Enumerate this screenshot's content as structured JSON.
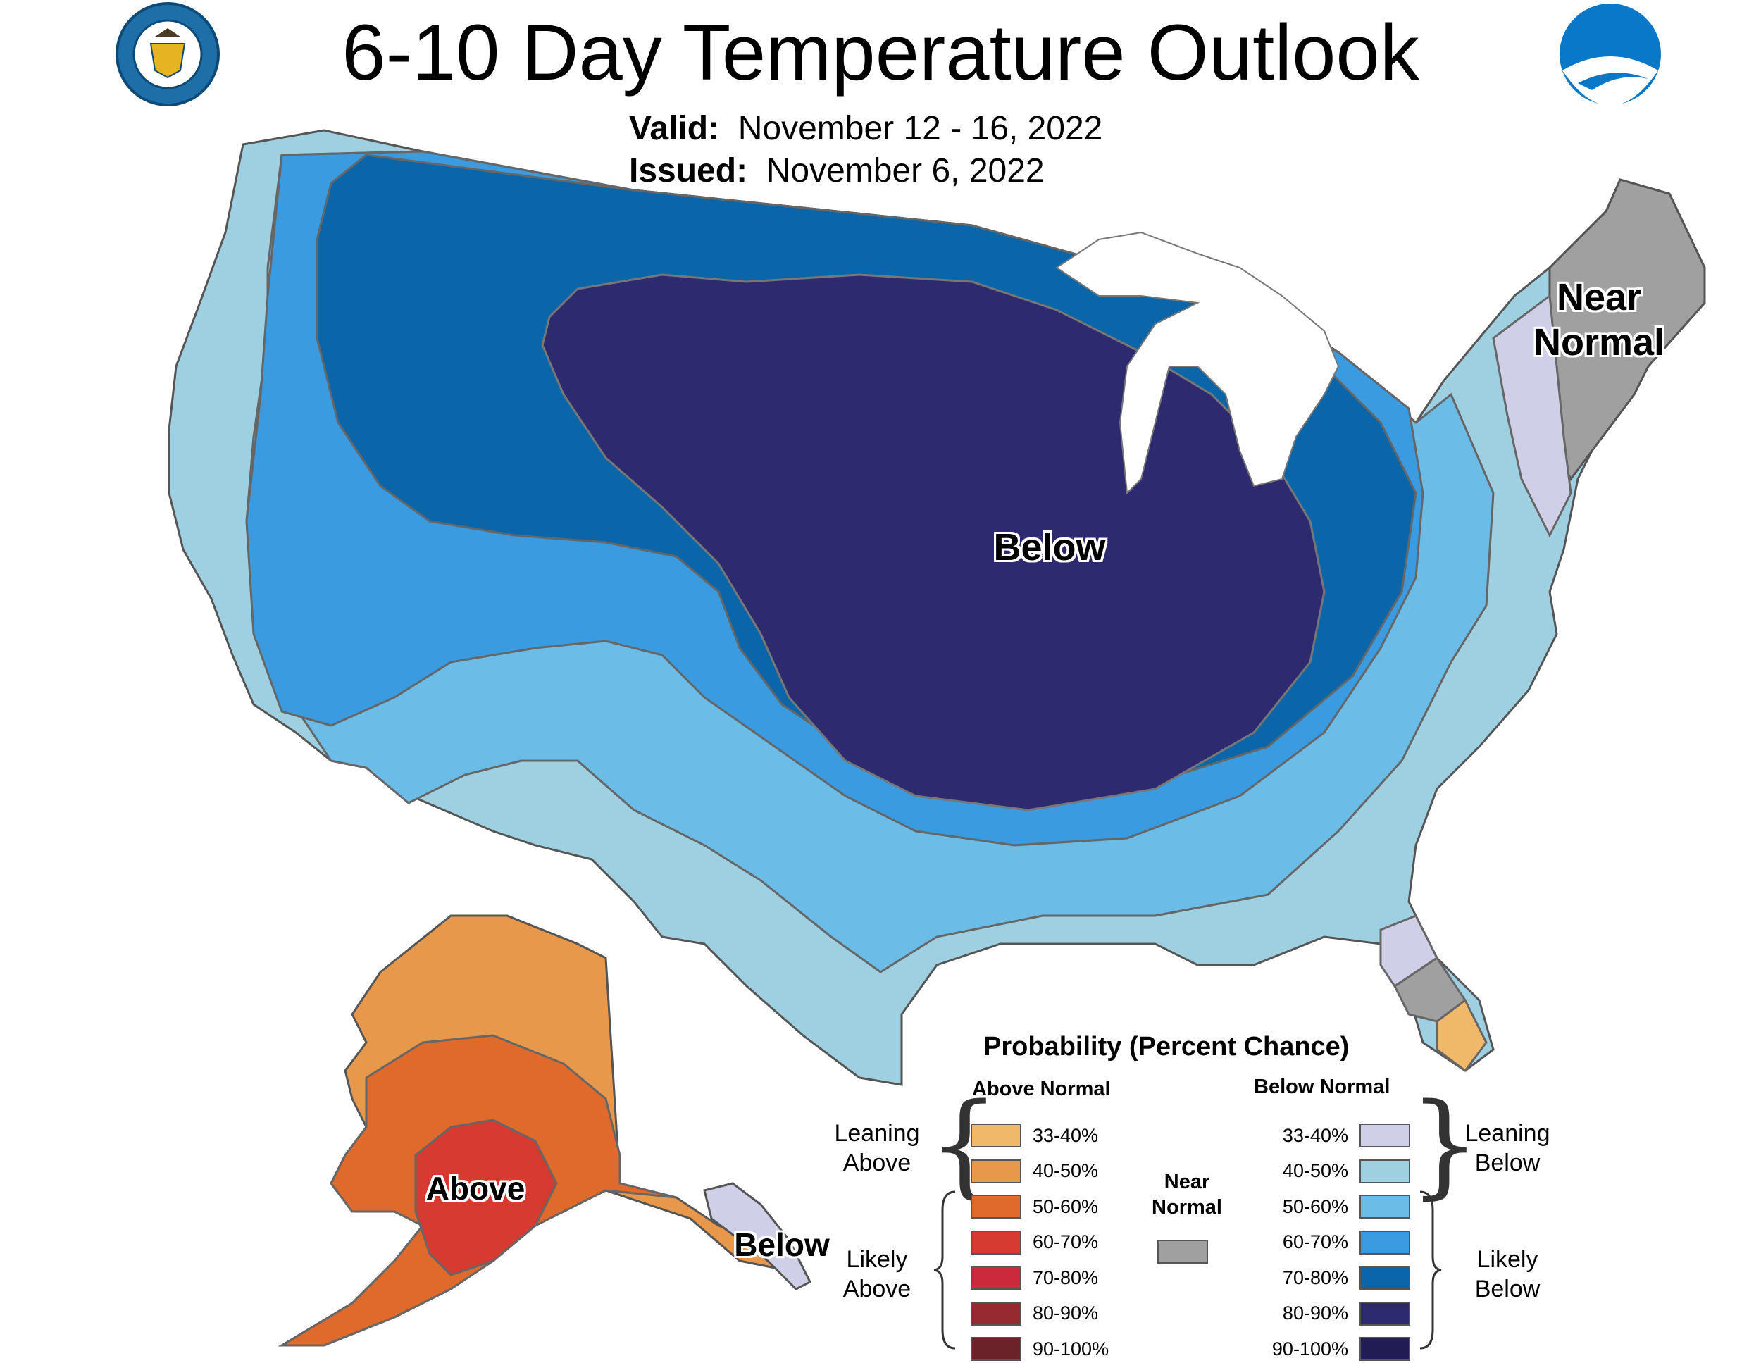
{
  "header": {
    "title": "6-10 Day Temperature Outlook",
    "valid_label": "Valid:",
    "valid_value": "November 12 - 16, 2022",
    "issued_label": "Issued:",
    "issued_value": "November 6, 2022"
  },
  "logos": {
    "commerce_seal_text": "DEPARTMENT OF COMMERCE · UNITED STATES OF AMERICA",
    "noaa_text": "NOAA"
  },
  "map_labels": {
    "below": "Below",
    "near_normal_line1": "Near",
    "near_normal_line2": "Normal",
    "above_alaska": "Above",
    "below_alaska": "Below"
  },
  "legend": {
    "title": "Probability (Percent Chance)",
    "above_header": "Above Normal",
    "below_header": "Below Normal",
    "near_label_line1": "Near",
    "near_label_line2": "Normal",
    "near_color": "#a0a0a0",
    "leaning_above_line1": "Leaning",
    "leaning_above_line2": "Above",
    "likely_above_line1": "Likely",
    "likely_above_line2": "Above",
    "leaning_below_line1": "Leaning",
    "leaning_below_line2": "Below",
    "likely_below_line1": "Likely",
    "likely_below_line2": "Below",
    "above": [
      {
        "range": "33-40%",
        "color": "#f0b869"
      },
      {
        "range": "40-50%",
        "color": "#e8984a"
      },
      {
        "range": "50-60%",
        "color": "#df6a2c"
      },
      {
        "range": "60-70%",
        "color": "#d63a30"
      },
      {
        "range": "70-80%",
        "color": "#cc2a3c"
      },
      {
        "range": "80-90%",
        "color": "#962a30"
      },
      {
        "range": "90-100%",
        "color": "#6b2228"
      }
    ],
    "below": [
      {
        "range": "33-40%",
        "color": "#cfd0e8"
      },
      {
        "range": "40-50%",
        "color": "#9fd0e2"
      },
      {
        "range": "50-60%",
        "color": "#6cbce8"
      },
      {
        "range": "60-70%",
        "color": "#3a9be0"
      },
      {
        "range": "70-80%",
        "color": "#0a66a8"
      },
      {
        "range": "80-90%",
        "color": "#2e2a70"
      },
      {
        "range": "90-100%",
        "color": "#221c55"
      }
    ]
  }
}
